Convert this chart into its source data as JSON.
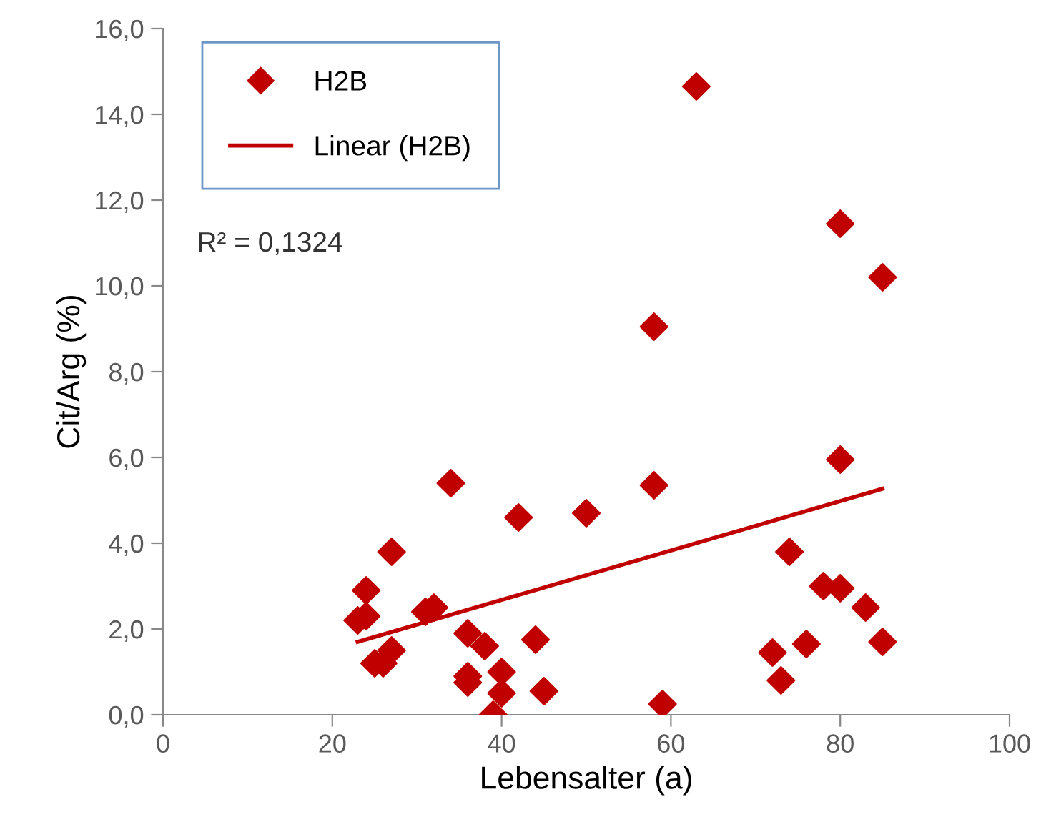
{
  "chart_data": {
    "type": "scatter",
    "xlabel": "Lebensalter (a)",
    "ylabel": "Cit/Arg (%)",
    "series": [
      {
        "name": "H2B",
        "color": "#c00000",
        "marker": "diamond",
        "x": [
          23,
          24,
          24,
          25,
          26,
          27,
          27,
          31,
          32,
          34,
          36,
          36,
          36,
          38,
          39,
          40,
          40,
          42,
          44,
          45,
          50,
          58,
          58,
          59,
          63,
          72,
          73,
          74,
          76,
          78,
          80,
          80,
          80,
          83,
          85,
          85
        ],
        "values": [
          2.2,
          2.3,
          2.9,
          1.2,
          1.2,
          1.5,
          3.8,
          2.4,
          2.5,
          5.4,
          1.9,
          0.9,
          0.75,
          1.6,
          0.0,
          1.0,
          0.5,
          4.6,
          1.75,
          0.55,
          4.7,
          9.05,
          5.35,
          0.25,
          14.65,
          1.45,
          0.8,
          3.8,
          1.65,
          3.0,
          2.95,
          11.45,
          5.95,
          2.5,
          10.2,
          1.7
        ]
      },
      {
        "name": "Linear (H2B)",
        "type": "line",
        "color": "#c00000",
        "line_style": "solid",
        "x": [
          23,
          85
        ],
        "values": [
          1.7,
          5.27
        ]
      }
    ],
    "annotations": [
      "R² = 0,1324"
    ],
    "xlim": [
      0,
      100
    ],
    "xticks": [
      0,
      20,
      40,
      60,
      80,
      100
    ],
    "ylim": [
      0,
      16
    ],
    "yticks": [
      {
        "value": 0,
        "label": "0,0"
      },
      {
        "value": 2,
        "label": "2,0"
      },
      {
        "value": 4,
        "label": "4,0"
      },
      {
        "value": 6,
        "label": "6,0"
      },
      {
        "value": 8,
        "label": "8,0"
      },
      {
        "value": 10,
        "label": "10,0"
      },
      {
        "value": 12,
        "label": "12,0"
      },
      {
        "value": 14,
        "label": "14,0"
      },
      {
        "value": 16,
        "label": "16,0"
      }
    ],
    "grid": false,
    "legend": "top left"
  }
}
